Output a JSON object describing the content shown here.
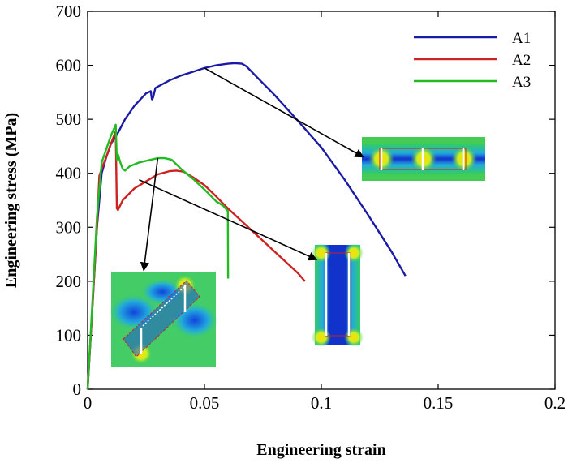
{
  "chart_data": {
    "type": "line",
    "xlabel": "Engineering strain",
    "ylabel": "Engineering stress (MPa)",
    "xlim": [
      0,
      0.2
    ],
    "ylim": [
      0,
      700
    ],
    "xticks": [
      0,
      0.05,
      0.1,
      0.15,
      0.2
    ],
    "xtick_labels": [
      "0",
      "0.05",
      "0.1",
      "0.15",
      "0.2"
    ],
    "yticks": [
      0,
      100,
      200,
      300,
      400,
      500,
      600,
      700
    ],
    "ytick_labels": [
      "0",
      "100",
      "200",
      "300",
      "400",
      "500",
      "600",
      "700"
    ],
    "grid": false,
    "legend_position": "top-right",
    "series": [
      {
        "name": "A1",
        "color": "#1a1aa6",
        "points": [
          [
            0,
            0
          ],
          [
            0.002,
            150
          ],
          [
            0.004,
            300
          ],
          [
            0.006,
            400
          ],
          [
            0.008,
            430
          ],
          [
            0.01,
            455
          ],
          [
            0.012,
            468
          ],
          [
            0.013,
            475
          ],
          [
            0.016,
            500
          ],
          [
            0.02,
            525
          ],
          [
            0.025,
            548
          ],
          [
            0.027,
            552
          ],
          [
            0.0275,
            537
          ],
          [
            0.028,
            540
          ],
          [
            0.029,
            558
          ],
          [
            0.035,
            572
          ],
          [
            0.04,
            581
          ],
          [
            0.045,
            588
          ],
          [
            0.05,
            595
          ],
          [
            0.055,
            600
          ],
          [
            0.06,
            603
          ],
          [
            0.063,
            604
          ],
          [
            0.066,
            603
          ],
          [
            0.068,
            598
          ],
          [
            0.072,
            580
          ],
          [
            0.08,
            545
          ],
          [
            0.09,
            497
          ],
          [
            0.1,
            448
          ],
          [
            0.11,
            388
          ],
          [
            0.12,
            323
          ],
          [
            0.13,
            255
          ],
          [
            0.136,
            210
          ]
        ]
      },
      {
        "name": "A2",
        "color": "#cc2222",
        "points": [
          [
            0,
            0
          ],
          [
            0.002,
            150
          ],
          [
            0.004,
            300
          ],
          [
            0.005,
            395
          ],
          [
            0.006,
            408
          ],
          [
            0.008,
            430
          ],
          [
            0.01,
            455
          ],
          [
            0.012,
            478
          ],
          [
            0.0125,
            335
          ],
          [
            0.013,
            332
          ],
          [
            0.015,
            350
          ],
          [
            0.02,
            372
          ],
          [
            0.025,
            385
          ],
          [
            0.03,
            398
          ],
          [
            0.035,
            404
          ],
          [
            0.038,
            405
          ],
          [
            0.041,
            403
          ],
          [
            0.045,
            393
          ],
          [
            0.05,
            378
          ],
          [
            0.055,
            357
          ],
          [
            0.06,
            335
          ],
          [
            0.065,
            315
          ],
          [
            0.07,
            295
          ],
          [
            0.08,
            255
          ],
          [
            0.09,
            215
          ],
          [
            0.093,
            200
          ]
        ]
      },
      {
        "name": "A3",
        "color": "#22bb22",
        "points": [
          [
            0,
            0
          ],
          [
            0.002,
            160
          ],
          [
            0.004,
            320
          ],
          [
            0.006,
            420
          ],
          [
            0.008,
            445
          ],
          [
            0.01,
            470
          ],
          [
            0.012,
            490
          ],
          [
            0.0125,
            425
          ],
          [
            0.013,
            435
          ],
          [
            0.014,
            420
          ],
          [
            0.015,
            408
          ],
          [
            0.016,
            405
          ],
          [
            0.018,
            413
          ],
          [
            0.022,
            420
          ],
          [
            0.026,
            424
          ],
          [
            0.03,
            428
          ],
          [
            0.033,
            428
          ],
          [
            0.036,
            425
          ],
          [
            0.04,
            408
          ],
          [
            0.045,
            390
          ],
          [
            0.05,
            370
          ],
          [
            0.055,
            348
          ],
          [
            0.058,
            340
          ],
          [
            0.06,
            330
          ],
          [
            0.0601,
            205
          ]
        ]
      }
    ],
    "annotations": [
      {
        "type": "arrow",
        "from": [
          0.05,
          595
        ],
        "to": [
          0.118,
          430
        ]
      },
      {
        "type": "arrow",
        "from": [
          0.022,
          388
        ],
        "to": [
          0.098,
          240
        ]
      },
      {
        "type": "arrow",
        "from": [
          0.03,
          428
        ],
        "to": [
          0.024,
          220
        ]
      }
    ]
  }
}
